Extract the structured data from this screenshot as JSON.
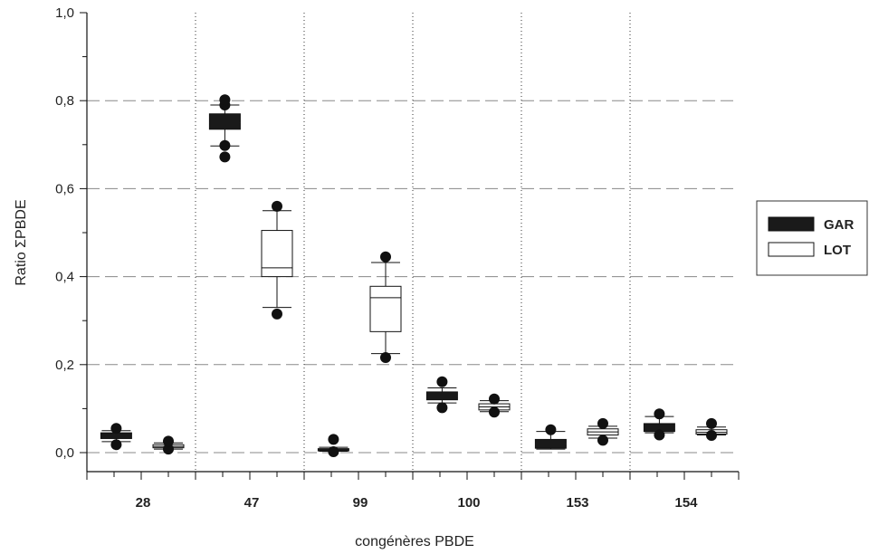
{
  "chart_data": {
    "type": "boxplot",
    "title": "",
    "xlabel": "congénères PBDE",
    "ylabel": "Ratio ΣPBDE",
    "ylim": [
      0,
      1
    ],
    "yticks": [
      "0,0",
      "0,2",
      "0,4",
      "0,6",
      "0,8",
      "1,0"
    ],
    "categories": [
      "28",
      "47",
      "99",
      "100",
      "153",
      "154"
    ],
    "grid": "horizontal dashed at major ticks; dotted vertical separators between congeners",
    "legend_position": "right",
    "series": [
      {
        "name": "GAR",
        "fill": "#1a1a1a",
        "boxes": [
          {
            "whisker_low": 0.025,
            "q1": 0.032,
            "median": 0.038,
            "q3": 0.045,
            "whisker_high": 0.05,
            "outliers": [
              0.018,
              0.055
            ]
          },
          {
            "whisker_low": 0.697,
            "q1": 0.735,
            "median": 0.75,
            "q3": 0.77,
            "whisker_high": 0.79,
            "outliers": [
              0.672,
              0.698,
              0.79,
              0.802
            ]
          },
          {
            "whisker_low": 0.003,
            "q1": 0.004,
            "median": 0.006,
            "q3": 0.009,
            "whisker_high": 0.012,
            "outliers": [
              0.002,
              0.03
            ]
          },
          {
            "whisker_low": 0.113,
            "q1": 0.12,
            "median": 0.128,
            "q3": 0.138,
            "whisker_high": 0.147,
            "outliers": [
              0.102,
              0.161
            ]
          },
          {
            "whisker_low": 0.008,
            "q1": 0.01,
            "median": 0.02,
            "q3": 0.03,
            "whisker_high": 0.048,
            "outliers": [
              0.052
            ]
          },
          {
            "whisker_low": 0.045,
            "q1": 0.048,
            "median": 0.055,
            "q3": 0.066,
            "whisker_high": 0.082,
            "outliers": [
              0.04,
              0.088
            ]
          }
        ]
      },
      {
        "name": "LOT",
        "fill": "#ffffff",
        "boxes": [
          {
            "whisker_low": 0.008,
            "q1": 0.011,
            "median": 0.014,
            "q3": 0.018,
            "whisker_high": 0.022,
            "outliers": [
              0.008,
              0.026
            ]
          },
          {
            "whisker_low": 0.33,
            "q1": 0.4,
            "median": 0.42,
            "q3": 0.505,
            "whisker_high": 0.55,
            "outliers": [
              0.315,
              0.56
            ]
          },
          {
            "whisker_low": 0.225,
            "q1": 0.275,
            "median": 0.352,
            "q3": 0.378,
            "whisker_high": 0.432,
            "outliers": [
              0.216,
              0.445
            ]
          },
          {
            "whisker_low": 0.093,
            "q1": 0.097,
            "median": 0.104,
            "q3": 0.111,
            "whisker_high": 0.118,
            "outliers": [
              0.092,
              0.122
            ]
          },
          {
            "whisker_low": 0.033,
            "q1": 0.04,
            "median": 0.047,
            "q3": 0.054,
            "whisker_high": 0.06,
            "outliers": [
              0.028,
              0.066
            ]
          },
          {
            "whisker_low": 0.04,
            "q1": 0.042,
            "median": 0.046,
            "q3": 0.052,
            "whisker_high": 0.058,
            "outliers": [
              0.039,
              0.066
            ]
          }
        ]
      }
    ]
  }
}
